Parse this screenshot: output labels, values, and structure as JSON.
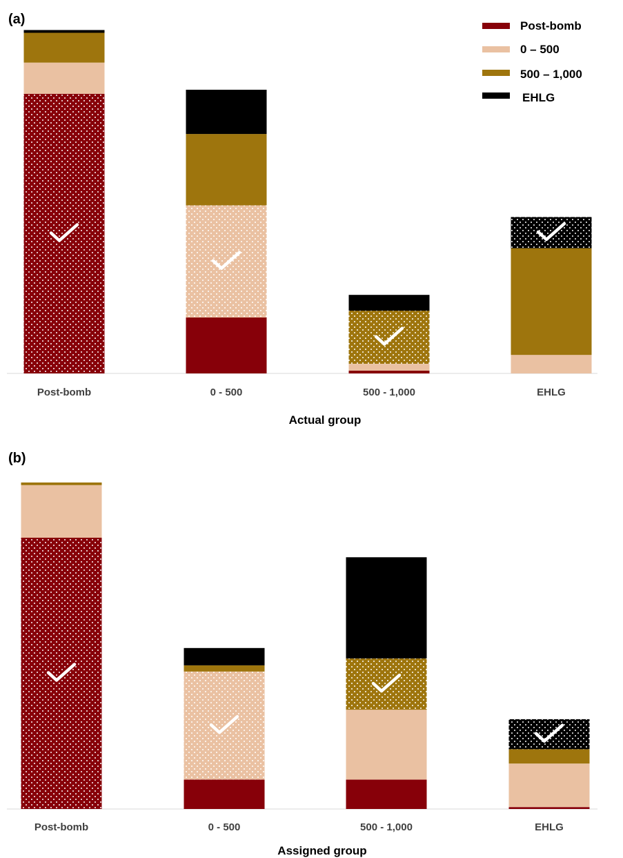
{
  "colors": {
    "Post-bomb": "#870009",
    "0 – 500": "#EAC1A2",
    "500 – 1,000": "#9E750D",
    "EHLG": "#000000"
  },
  "legend": [
    "Post-bomb",
    "0 – 500",
    "500 – 1,000",
    "EHLG"
  ],
  "chart_data": [
    {
      "type": "bar",
      "stacked": true,
      "panel": "(a)",
      "xlabel": "Actual group",
      "categories": [
        "Post-bomb",
        "0 - 500",
        "500 - 1,000",
        "EHLG"
      ],
      "ylim": [
        0,
        100
      ],
      "series": [
        {
          "name": "Post-bomb",
          "values": [
            81.5,
            16.3,
            0.8,
            0
          ]
        },
        {
          "name": "0 – 500",
          "values": [
            9.1,
            32.7,
            2.0,
            5.4
          ]
        },
        {
          "name": "500 – 1,000",
          "values": [
            8.7,
            20.8,
            15.5,
            31.1
          ]
        },
        {
          "name": "EHLG",
          "values": [
            0.8,
            12.9,
            4.6,
            9.1
          ]
        }
      ],
      "correct": [
        "Post-bomb",
        "0 – 500",
        "500 – 1,000",
        "EHLG"
      ]
    },
    {
      "type": "bar",
      "stacked": true,
      "panel": "(b)",
      "xlabel": "Assigned group",
      "categories": [
        "Post-bomb",
        "0 - 500",
        "500 - 1,000",
        "EHLG"
      ],
      "ylim": [
        0,
        100
      ],
      "series": [
        {
          "name": "Post-bomb",
          "values": [
            83.1,
            9.0,
            9.0,
            0.6
          ]
        },
        {
          "name": "0 – 500",
          "values": [
            16.1,
            33.1,
            21.4,
            13.3
          ]
        },
        {
          "name": "500 – 1,000",
          "values": [
            0.8,
            1.9,
            15.7,
            4.4
          ]
        },
        {
          "name": "EHLG",
          "values": [
            0,
            5.3,
            31.0,
            9.2
          ]
        }
      ],
      "correct": [
        "Post-bomb",
        "0 – 500",
        "500 – 1,000",
        "EHLG"
      ]
    }
  ]
}
